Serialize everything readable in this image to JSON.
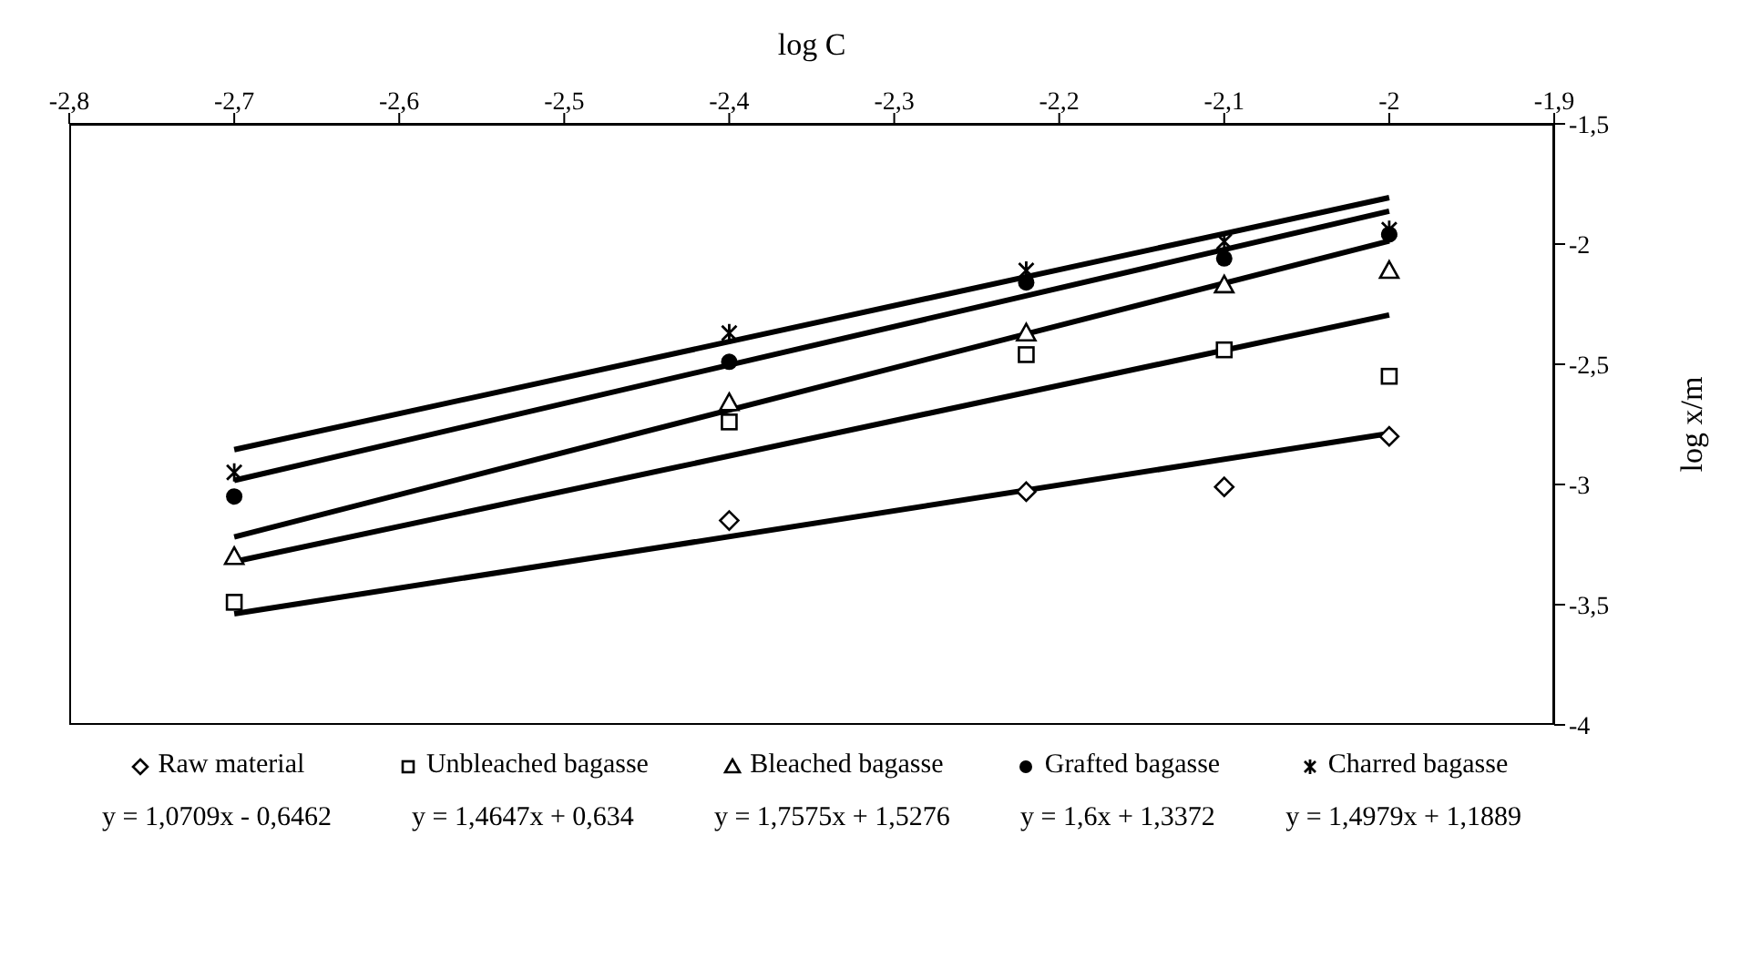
{
  "chart_data": {
    "type": "scatter",
    "xlabel": "log C",
    "ylabel": "log x/m",
    "x": [
      -2.7,
      -2.4,
      -2.22,
      -2.1,
      -2.0
    ],
    "xlim": [
      -2.8,
      -1.9
    ],
    "xticks": [
      {
        "value": -2.8,
        "label": "-2,8"
      },
      {
        "value": -2.7,
        "label": "-2,7"
      },
      {
        "value": -2.6,
        "label": "-2,6"
      },
      {
        "value": -2.5,
        "label": "-2,5"
      },
      {
        "value": -2.4,
        "label": "-2,4"
      },
      {
        "value": -2.3,
        "label": "-2,3"
      },
      {
        "value": -2.2,
        "label": "-2,2"
      },
      {
        "value": -2.1,
        "label": "-2,1"
      },
      -2,
      {
        "value": -1.9,
        "label": "-1,9"
      }
    ],
    "ylim": [
      -4,
      -1.5
    ],
    "yticks": [
      -4,
      {
        "value": -3.5,
        "label": "-3,5"
      },
      -3,
      {
        "value": -2.5,
        "label": "-2,5"
      },
      -2,
      {
        "value": -1.5,
        "label": "-1,5"
      }
    ],
    "series": [
      {
        "name": "Raw material",
        "color": "#000000",
        "marker": "diamond",
        "values": [
          null,
          -3.15,
          -3.03,
          -3.01,
          -2.8
        ]
      },
      {
        "name": "Unbleached bagasse",
        "color": "#000000",
        "marker": "square",
        "values": [
          -3.49,
          -2.74,
          -2.46,
          -2.44,
          -2.55
        ]
      },
      {
        "name": "Bleached bagasse",
        "color": "#000000",
        "marker": "triangle",
        "values": [
          -3.3,
          -2.66,
          -2.37,
          -2.17,
          -2.11
        ]
      },
      {
        "name": "Grafted bagasse",
        "color": "#000000",
        "marker": "circle",
        "values": [
          -3.05,
          -2.49,
          -2.16,
          -2.06,
          -1.96
        ]
      },
      {
        "name": "Charred bagasse",
        "color": "#000000",
        "marker": "cross",
        "values": [
          -2.95,
          -2.37,
          -2.11,
          -1.99,
          -1.94
        ]
      },
      {
        "type": "line",
        "color": "#000000",
        "marker": "none",
        "values": [
          -3.538,
          null,
          null,
          null,
          -2.788
        ]
      },
      {
        "type": "line",
        "color": "#000000",
        "marker": "none",
        "values": [
          -3.321,
          null,
          null,
          null,
          -2.295
        ]
      },
      {
        "type": "line",
        "color": "#000000",
        "marker": "none",
        "values": [
          -3.218,
          null,
          null,
          null,
          -1.987
        ]
      },
      {
        "type": "line",
        "color": "#000000",
        "marker": "none",
        "values": [
          -2.983,
          null,
          null,
          null,
          -1.863
        ]
      },
      {
        "type": "line",
        "color": "#000000",
        "marker": "none",
        "values": [
          -2.855,
          null,
          null,
          null,
          -1.807
        ]
      }
    ],
    "annotations": [
      "y = 1,0709x - 0,6462",
      "y = 1,4647x + 0,634",
      "y = 1,7575x + 1,5276",
      "y = 1,6x + 1,3372",
      "y = 1,4979x + 1,1889"
    ],
    "legend": "bottom",
    "grid": false
  }
}
